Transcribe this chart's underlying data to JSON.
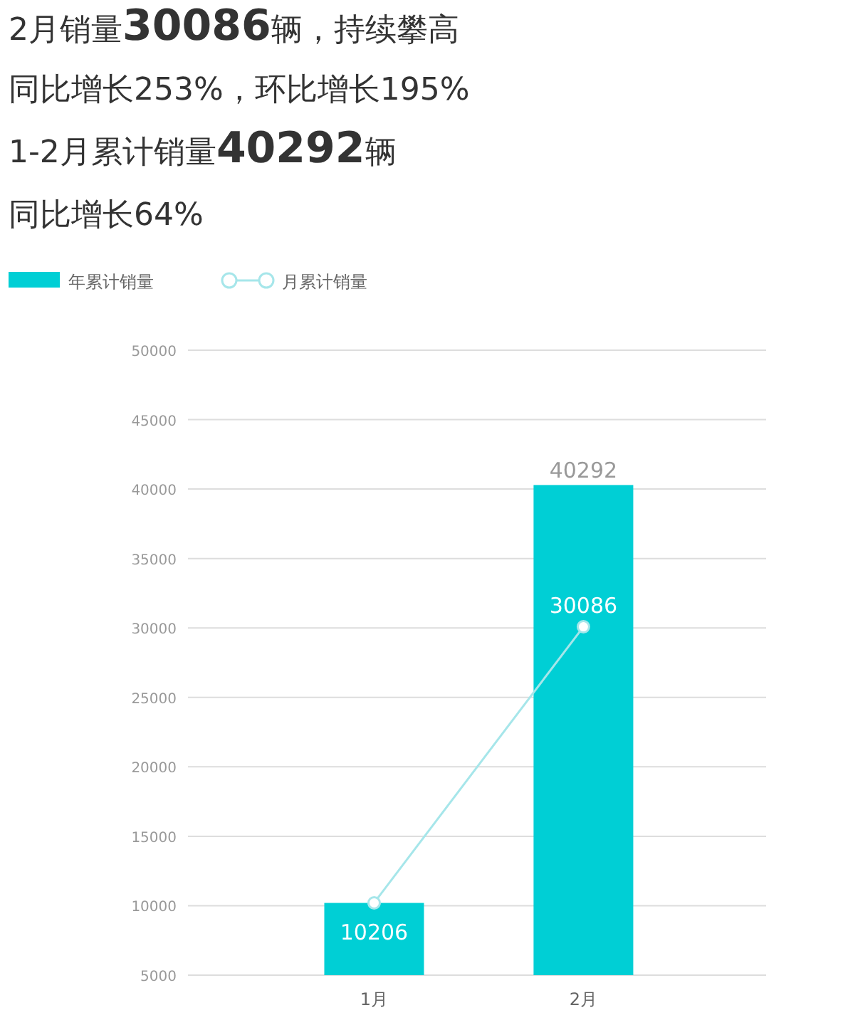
{
  "chart_data": {
    "type": "bar",
    "title": "2月销量30086辆，持续攀高",
    "subtitle": "同比增长253%，环比增长195%",
    "annotations": [
      "1-2月累计销量40292辆",
      "同比增长64%"
    ],
    "categories": [
      "1月",
      "2月"
    ],
    "series": [
      {
        "name": "年累计销量",
        "color": "#00cfd5",
        "values": [
          10200,
          40292
        ],
        "value_labels": [
          null,
          "40292"
        ]
      },
      {
        "name": "月累计销量",
        "type": "line",
        "color": "#a6e6ea",
        "marker": "circle",
        "values": [
          10206,
          30086
        ],
        "value_labels": [
          "10206",
          "30086"
        ]
      }
    ],
    "ylim": [
      5000,
      50000
    ],
    "yticks": [
      5000,
      10000,
      15000,
      20000,
      25000,
      30000,
      35000,
      40000,
      45000,
      50000
    ],
    "grid": "y",
    "legend": "top left"
  }
}
